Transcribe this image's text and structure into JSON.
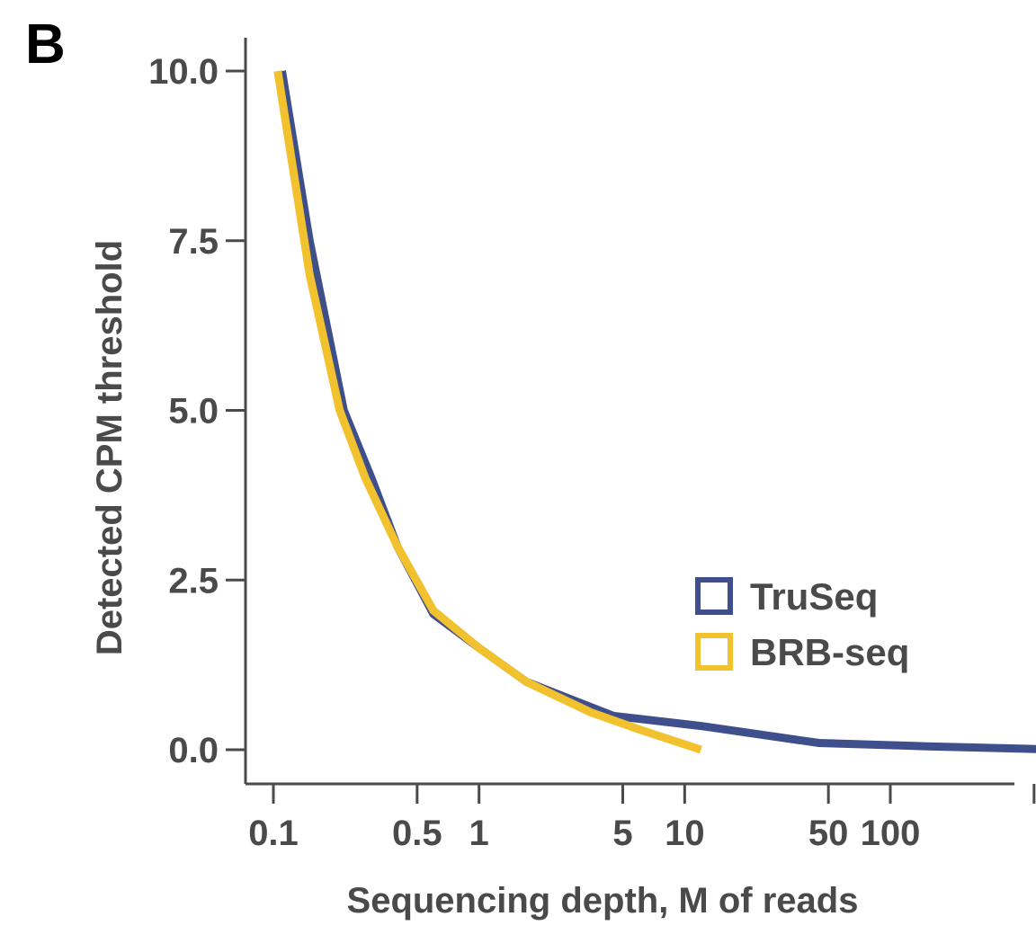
{
  "panel_label": "B",
  "chart_data": {
    "type": "line",
    "xlabel": "Sequencing depth, M of reads",
    "ylabel": "Detected CPM threshold",
    "x_scale": "log",
    "xlim": [
      0.085,
      900
    ],
    "ylim": [
      -0.5,
      10.0
    ],
    "x_ticks": [
      {
        "value": 0.1,
        "label": "0.1"
      },
      {
        "value": 0.5,
        "label": "0.5"
      },
      {
        "value": 1,
        "label": "1"
      },
      {
        "value": 5,
        "label": "5"
      },
      {
        "value": 10,
        "label": "10"
      },
      {
        "value": 50,
        "label": "50"
      },
      {
        "value": 100,
        "label": "100"
      },
      {
        "value": 500,
        "label": ""
      }
    ],
    "y_ticks": [
      {
        "value": 0.0,
        "label": "0.0"
      },
      {
        "value": 2.5,
        "label": "2.5"
      },
      {
        "value": 5.0,
        "label": "5.0"
      },
      {
        "value": 7.5,
        "label": "7.5"
      },
      {
        "value": 10.0,
        "label": "10.0"
      }
    ],
    "grid": false,
    "legend_position": "bottom-right",
    "series": [
      {
        "name": "TruSeq",
        "color": "#3f4f8c",
        "x": [
          0.11,
          0.15,
          0.22,
          0.3,
          0.4,
          0.6,
          1.0,
          1.7,
          4.5,
          12.0,
          45.0,
          150.0,
          700.0
        ],
        "y": [
          10.0,
          7.5,
          5.0,
          4.0,
          3.0,
          2.0,
          1.5,
          1.0,
          0.5,
          0.35,
          0.1,
          0.05,
          0.0
        ]
      },
      {
        "name": "BRB-seq",
        "color": "#f2c12e",
        "x": [
          0.105,
          0.15,
          0.21,
          0.28,
          0.4,
          0.6,
          1.0,
          1.7,
          3.5,
          6.0,
          12.0
        ],
        "y": [
          10.0,
          7.0,
          5.0,
          4.0,
          3.0,
          2.05,
          1.5,
          1.0,
          0.55,
          0.3,
          0.0
        ]
      }
    ]
  }
}
